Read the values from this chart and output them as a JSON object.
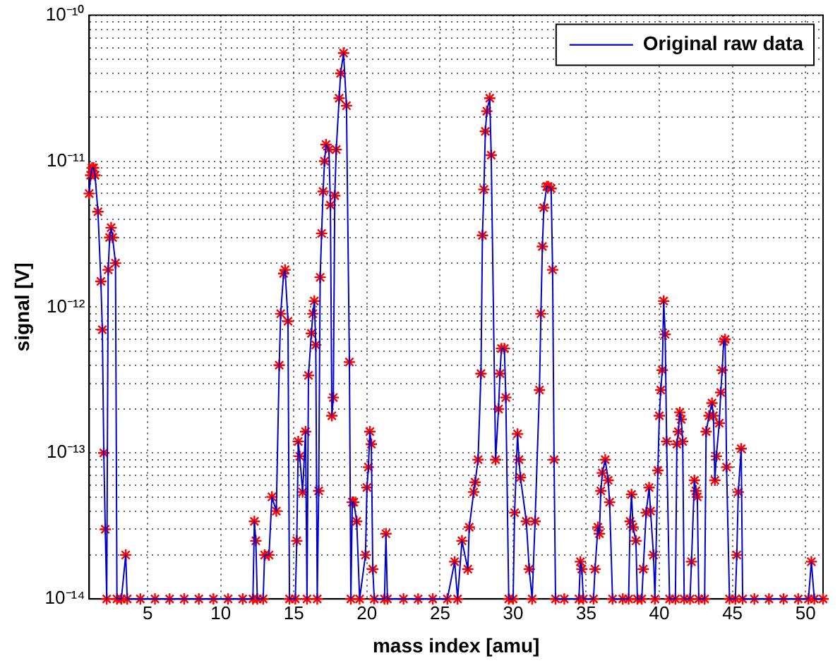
{
  "chart_data": {
    "type": "line",
    "xlabel": "mass index [amu]",
    "ylabel": "signal [V]",
    "x": [
      1.0,
      1.1,
      1.2,
      1.3,
      1.4,
      1.6,
      1.8,
      1.9,
      2.0,
      2.1,
      2.2,
      2.3,
      2.4,
      2.5,
      2.6,
      2.8,
      2.9,
      3.2,
      3.5,
      3.6,
      4.5,
      5.5,
      6.5,
      7.5,
      8.5,
      9.5,
      10.5,
      11.5,
      12.2,
      12.3,
      12.4,
      12.5,
      12.9,
      13.0,
      13.3,
      13.5,
      13.8,
      14.0,
      14.1,
      14.3,
      14.4,
      14.6,
      14.7,
      15.1,
      15.2,
      15.3,
      15.4,
      15.6,
      15.8,
      15.9,
      16.0,
      16.2,
      16.3,
      16.4,
      16.5,
      16.6,
      16.7,
      16.8,
      16.9,
      17.0,
      17.1,
      17.2,
      17.4,
      17.5,
      17.6,
      17.7,
      17.8,
      17.9,
      18.1,
      18.2,
      18.4,
      18.6,
      18.8,
      18.9,
      19.0,
      19.1,
      19.3,
      19.5,
      19.9,
      20.0,
      20.1,
      20.2,
      20.3,
      20.4,
      20.5,
      21.2,
      21.3,
      21.4,
      22.5,
      23.5,
      24.5,
      25.5,
      26.0,
      26.2,
      26.5,
      26.9,
      27.0,
      27.3,
      27.4,
      27.6,
      27.8,
      27.9,
      28.0,
      28.1,
      28.2,
      28.4,
      28.5,
      28.8,
      29.0,
      29.1,
      29.2,
      29.4,
      29.5,
      29.7,
      30.0,
      30.1,
      30.3,
      30.4,
      30.5,
      30.9,
      31.1,
      31.3,
      31.5,
      31.8,
      31.9,
      32.0,
      32.1,
      32.3,
      32.4,
      32.6,
      32.7,
      32.8,
      32.9,
      33.5,
      34.5,
      34.6,
      34.7,
      34.8,
      35.5,
      35.6,
      35.8,
      35.9,
      36.0,
      36.1,
      36.3,
      36.5,
      36.6,
      36.8,
      37.5,
      37.9,
      38.0,
      38.1,
      38.2,
      38.4,
      38.5,
      38.8,
      38.9,
      39.1,
      39.3,
      39.4,
      39.6,
      39.7,
      39.9,
      40.0,
      40.1,
      40.2,
      40.3,
      40.4,
      40.5,
      40.7,
      41.1,
      41.2,
      41.3,
      41.4,
      41.5,
      41.6,
      41.7,
      42.1,
      42.2,
      42.4,
      42.5,
      42.6,
      42.7,
      43.1,
      43.2,
      43.4,
      43.6,
      43.7,
      43.8,
      43.9,
      44.1,
      44.2,
      44.3,
      44.4,
      44.5,
      44.6,
      44.8,
      45.2,
      45.3,
      45.4,
      45.6,
      45.7,
      46.5,
      47.5,
      48.5,
      49.5,
      50.2,
      50.4,
      50.6,
      51.2
    ],
    "series": [
      {
        "name": "Original raw data",
        "type": "line",
        "color": "#0000cc",
        "marker": "none",
        "values": [
          6e-12,
          8e-12,
          9e-12,
          9e-12,
          8e-12,
          4.5e-12,
          1.5e-12,
          7e-13,
          1e-13,
          3e-14,
          1e-14,
          1.8e-12,
          3e-12,
          3.5e-12,
          3e-12,
          2e-12,
          1e-14,
          1e-14,
          2e-14,
          1e-14,
          1e-14,
          1e-14,
          1e-14,
          1e-14,
          1e-14,
          1e-14,
          1e-14,
          1e-14,
          1e-14,
          3.4e-14,
          2.5e-14,
          1e-14,
          1e-14,
          2e-14,
          2e-14,
          5e-14,
          4e-14,
          4e-13,
          9e-13,
          1.7e-12,
          1.8e-12,
          8e-13,
          1e-14,
          1e-14,
          2.5e-14,
          1.2e-13,
          9.5e-14,
          5.4e-14,
          1.4e-13,
          1e-14,
          3.4e-13,
          6.6e-13,
          9e-13,
          1.1e-12,
          5.5e-13,
          1e-14,
          5.5e-14,
          1.6e-12,
          3.2e-12,
          6.2e-12,
          1e-11,
          1.3e-11,
          1.2e-11,
          5e-12,
          1.8e-13,
          2.4e-13,
          5.8e-12,
          1.2e-11,
          2.7e-11,
          4e-11,
          5.5e-11,
          2.4e-11,
          4.2e-13,
          1e-14,
          4.6e-14,
          4.6e-14,
          3.4e-14,
          1e-14,
          2e-14,
          5.8e-14,
          8e-14,
          1.4e-13,
          1.15e-13,
          1.6e-14,
          1e-14,
          1e-14,
          2.8e-14,
          1e-14,
          1e-14,
          1e-14,
          1e-14,
          1e-14,
          1.8e-14,
          1e-14,
          2.5e-14,
          1.6e-14,
          3.1e-14,
          5.4e-14,
          6.3e-14,
          9e-14,
          3.5e-13,
          3.1e-12,
          6.4e-12,
          1.6e-11,
          2.2e-11,
          2.7e-11,
          1.1e-11,
          9e-14,
          2e-13,
          3.5e-13,
          5.2e-13,
          5.2e-13,
          2.4e-13,
          1e-14,
          1e-14,
          3.9e-14,
          1.35e-13,
          9e-14,
          6.8e-14,
          3.4e-14,
          1.6e-14,
          1e-14,
          3.4e-14,
          2.7e-13,
          9e-13,
          2.6e-12,
          4.8e-12,
          6.7e-12,
          6.7e-12,
          6.5e-12,
          1.8e-12,
          9e-14,
          1e-14,
          1e-14,
          1e-14,
          1.8e-14,
          1.6e-14,
          1e-14,
          1e-14,
          1.6e-14,
          3.1e-14,
          2.8e-14,
          5.5e-14,
          7.3e-14,
          9e-14,
          6.5e-14,
          4.6e-14,
          1e-14,
          1e-14,
          1e-14,
          3.4e-14,
          5.2e-14,
          3.1e-14,
          2.5e-14,
          1e-14,
          1e-14,
          1.6e-14,
          3.9e-14,
          5.8e-14,
          4e-14,
          2e-14,
          1e-14,
          7.6e-14,
          1.8e-13,
          2.7e-13,
          3.7e-13,
          1.1e-12,
          6.5e-13,
          1.2e-13,
          1e-14,
          1e-14,
          1.15e-13,
          1.4e-13,
          1.9e-13,
          1.7e-13,
          1.2e-13,
          1e-14,
          1e-14,
          1.8e-14,
          6.5e-14,
          5.5e-14,
          5e-14,
          1e-14,
          1e-14,
          1.4e-13,
          1.8e-13,
          2.2e-13,
          1.8e-13,
          6.5e-14,
          9.5e-14,
          1.6e-13,
          2.6e-13,
          3.7e-13,
          5.8e-13,
          6e-13,
          8e-14,
          1e-14,
          1e-14,
          2e-14,
          5.4e-14,
          1.07e-13,
          1e-14,
          1e-14,
          1e-14,
          1e-14,
          1e-14,
          1e-14,
          1.8e-14,
          1e-14,
          1e-14
        ]
      },
      {
        "type": "scatter",
        "color": "#ff0000",
        "marker": "cross",
        "values": [
          6e-12,
          8e-12,
          9e-12,
          9e-12,
          8e-12,
          4.5e-12,
          1.5e-12,
          7e-13,
          1e-13,
          3e-14,
          1e-14,
          1.8e-12,
          3e-12,
          3.5e-12,
          3e-12,
          2e-12,
          1e-14,
          1e-14,
          2e-14,
          1e-14,
          1e-14,
          1e-14,
          1e-14,
          1e-14,
          1e-14,
          1e-14,
          1e-14,
          1e-14,
          1e-14,
          3.4e-14,
          2.5e-14,
          1e-14,
          1e-14,
          2e-14,
          2e-14,
          5e-14,
          4e-14,
          4e-13,
          9e-13,
          1.7e-12,
          1.8e-12,
          8e-13,
          1e-14,
          1e-14,
          2.5e-14,
          1.2e-13,
          9.5e-14,
          5.4e-14,
          1.4e-13,
          1e-14,
          3.4e-13,
          6.6e-13,
          9e-13,
          1.1e-12,
          5.5e-13,
          1e-14,
          5.5e-14,
          1.6e-12,
          3.2e-12,
          6.2e-12,
          1e-11,
          1.3e-11,
          1.2e-11,
          5e-12,
          1.8e-13,
          2.4e-13,
          5.8e-12,
          1.2e-11,
          2.7e-11,
          4e-11,
          5.5e-11,
          2.4e-11,
          4.2e-13,
          1e-14,
          4.6e-14,
          4.6e-14,
          3.4e-14,
          1e-14,
          2e-14,
          5.8e-14,
          8e-14,
          1.4e-13,
          1.15e-13,
          1.6e-14,
          1e-14,
          1e-14,
          2.8e-14,
          1e-14,
          1e-14,
          1e-14,
          1e-14,
          1e-14,
          1.8e-14,
          1e-14,
          2.5e-14,
          1.6e-14,
          3.1e-14,
          5.4e-14,
          6.3e-14,
          9e-14,
          3.5e-13,
          3.1e-12,
          6.4e-12,
          1.6e-11,
          2.2e-11,
          2.7e-11,
          1.1e-11,
          9e-14,
          2e-13,
          3.5e-13,
          5.2e-13,
          5.2e-13,
          2.4e-13,
          1e-14,
          1e-14,
          3.9e-14,
          1.35e-13,
          9e-14,
          6.8e-14,
          3.4e-14,
          1.6e-14,
          1e-14,
          3.4e-14,
          2.7e-13,
          9e-13,
          2.6e-12,
          4.8e-12,
          6.7e-12,
          6.7e-12,
          6.5e-12,
          1.8e-12,
          9e-14,
          1e-14,
          1e-14,
          1e-14,
          1.8e-14,
          1.6e-14,
          1e-14,
          1e-14,
          1.6e-14,
          3.1e-14,
          2.8e-14,
          5.5e-14,
          7.3e-14,
          9e-14,
          6.5e-14,
          4.6e-14,
          1e-14,
          1e-14,
          1e-14,
          3.4e-14,
          5.2e-14,
          3.1e-14,
          2.5e-14,
          1e-14,
          1e-14,
          1.6e-14,
          3.9e-14,
          5.8e-14,
          4e-14,
          2e-14,
          1e-14,
          7.6e-14,
          1.8e-13,
          2.7e-13,
          3.7e-13,
          1.1e-12,
          6.5e-13,
          1.2e-13,
          1e-14,
          1e-14,
          1.15e-13,
          1.4e-13,
          1.9e-13,
          1.7e-13,
          1.2e-13,
          1e-14,
          1e-14,
          1.8e-14,
          6.5e-14,
          5.5e-14,
          5e-14,
          1e-14,
          1e-14,
          1.4e-13,
          1.8e-13,
          2.2e-13,
          1.8e-13,
          6.5e-14,
          9.5e-14,
          1.6e-13,
          2.6e-13,
          3.7e-13,
          5.8e-13,
          6e-13,
          8e-14,
          1e-14,
          1e-14,
          2e-14,
          5.4e-14,
          1.07e-13,
          1e-14,
          1e-14,
          1e-14,
          1e-14,
          1e-14,
          1e-14,
          1.8e-14,
          1e-14,
          1e-14
        ]
      }
    ],
    "xlim": [
      1,
      51.2
    ],
    "xticks": [
      5,
      10,
      15,
      20,
      25,
      30,
      35,
      40,
      45,
      50
    ],
    "ylim": [
      1e-14,
      1e-10
    ],
    "yticks": [
      {
        "value": 1e-14,
        "label": "10⁻¹⁴"
      },
      {
        "value": 2e-14,
        "label": null
      },
      {
        "value": 3e-14,
        "label": null
      },
      {
        "value": 4e-14,
        "label": null
      },
      {
        "value": 5e-14,
        "label": null
      },
      {
        "value": 6e-14,
        "label": null
      },
      {
        "value": 7e-14,
        "label": null
      },
      {
        "value": 8e-14,
        "label": null
      },
      {
        "value": 9e-14,
        "label": null
      },
      {
        "value": 1e-13,
        "label": "10⁻¹³"
      },
      {
        "value": 2e-13,
        "label": null
      },
      {
        "value": 3e-13,
        "label": null
      },
      {
        "value": 4e-13,
        "label": null
      },
      {
        "value": 5e-13,
        "label": null
      },
      {
        "value": 6e-13,
        "label": null
      },
      {
        "value": 7e-13,
        "label": null
      },
      {
        "value": 8e-13,
        "label": null
      },
      {
        "value": 9e-13,
        "label": null
      },
      {
        "value": 1e-12,
        "label": "10⁻¹²"
      },
      {
        "value": 2e-12,
        "label": null
      },
      {
        "value": 3e-12,
        "label": null
      },
      {
        "value": 4e-12,
        "label": null
      },
      {
        "value": 5e-12,
        "label": null
      },
      {
        "value": 6e-12,
        "label": null
      },
      {
        "value": 7e-12,
        "label": null
      },
      {
        "value": 8e-12,
        "label": null
      },
      {
        "value": 9e-12,
        "label": null
      },
      {
        "value": 1e-11,
        "label": "10⁻¹¹"
      },
      {
        "value": 2e-11,
        "label": null
      },
      {
        "value": 3e-11,
        "label": null
      },
      {
        "value": 4e-11,
        "label": null
      },
      {
        "value": 5e-11,
        "label": null
      },
      {
        "value": 6e-11,
        "label": null
      },
      {
        "value": 7e-11,
        "label": null
      },
      {
        "value": 8e-11,
        "label": null
      },
      {
        "value": 9e-11,
        "label": null
      },
      {
        "value": 1e-10,
        "label": "10⁻¹⁰"
      }
    ],
    "log": "y",
    "grid": true,
    "legend": "top right",
    "line_style": "solid"
  }
}
